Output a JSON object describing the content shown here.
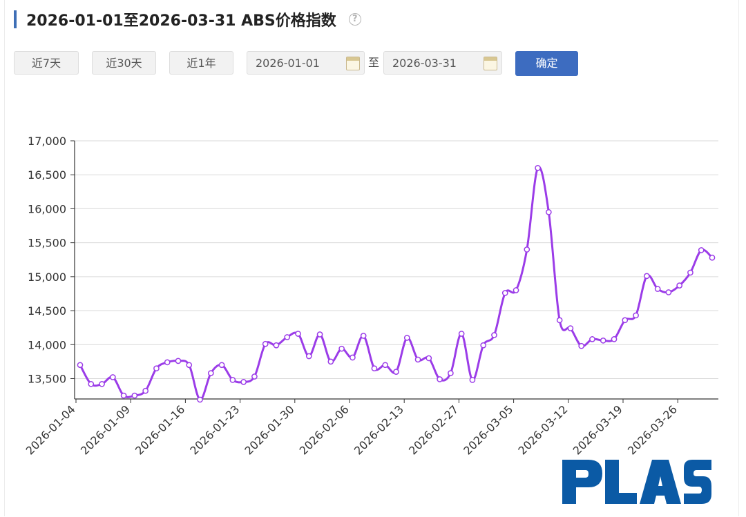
{
  "header": {
    "title": "2026-01-01至2026-03-31 ABS价格指数",
    "help_glyph": "?"
  },
  "toolbar": {
    "btn_7d": "近7天",
    "btn_30d": "近30天",
    "btn_1y": "近1年",
    "start_date": "2026-01-01",
    "separator": "至",
    "end_date": "2026-03-31",
    "confirm": "确定"
  },
  "colors": {
    "accent": "#3f6fb6",
    "line": "#9b3ce8",
    "primary_button": "#3d6cc0",
    "logo": "#0b5aa5"
  },
  "logo": {
    "text": "PLAS"
  },
  "chart_data": {
    "type": "line",
    "title": "",
    "xlabel": "",
    "ylabel": "",
    "ylim": [
      13200,
      17000
    ],
    "yticks": [
      13500,
      14000,
      14500,
      15000,
      15500,
      16000,
      16500,
      17000
    ],
    "ytick_labels": [
      "13,500",
      "14,000",
      "14,500",
      "15,000",
      "15,500",
      "16,000",
      "16,500",
      "17,000"
    ],
    "xtick_labels": [
      "2026-01-04",
      "2026-01-09",
      "2026-01-16",
      "2026-01-23",
      "2026-01-30",
      "2026-02-06",
      "2026-02-13",
      "2026-02-27",
      "2026-03-05",
      "2026-03-12",
      "2026-03-19",
      "2026-03-26"
    ],
    "grid": true,
    "legend": "none",
    "series": [
      {
        "values": [
          13700,
          13420,
          13420,
          13520,
          13250,
          13250,
          13320,
          13650,
          13740,
          13760,
          13700,
          13190,
          13580,
          13700,
          13480,
          13450,
          13530,
          14010,
          13990,
          14110,
          14160,
          13830,
          14150,
          13750,
          13940,
          13810,
          14130,
          13650,
          13700,
          13600,
          14100,
          13780,
          13800,
          13490,
          13580,
          14160,
          13480,
          13990,
          14140,
          14760,
          14800,
          15400,
          16600,
          15950,
          14360,
          14240,
          13980,
          14080,
          14060,
          14080,
          14360,
          14430,
          15010,
          14820,
          14770,
          14870,
          15060,
          15390,
          15280
        ]
      }
    ]
  }
}
